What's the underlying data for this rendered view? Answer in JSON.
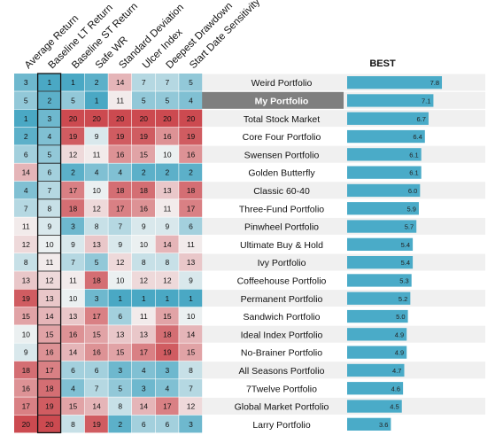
{
  "chart_data": [
    {
      "type": "heatmap",
      "columns": [
        "Average Return",
        "Baseline LT Return",
        "Baseline ST Return",
        "Safe WR",
        "Standard Deviation",
        "Ulcer Index",
        "Deepest Drawdown",
        "Start Date Sensitivity"
      ],
      "highlighted_column": "Baseline LT Return",
      "rows": [
        {
          "name": "Weird Portfolio",
          "ranks": [
            3,
            1,
            1,
            2,
            14,
            7,
            7,
            5
          ]
        },
        {
          "name": "My Portfolio",
          "ranks": [
            5,
            2,
            5,
            1,
            11,
            5,
            5,
            4
          ],
          "selected": true
        },
        {
          "name": "Total Stock Market",
          "ranks": [
            1,
            3,
            20,
            20,
            20,
            20,
            20,
            20
          ]
        },
        {
          "name": "Core Four Portfolio",
          "ranks": [
            2,
            4,
            19,
            9,
            19,
            19,
            16,
            19
          ]
        },
        {
          "name": "Swensen Portfolio",
          "ranks": [
            6,
            5,
            12,
            11,
            16,
            15,
            10,
            16
          ]
        },
        {
          "name": "Golden Butterfly",
          "ranks": [
            14,
            6,
            2,
            4,
            4,
            2,
            2,
            2
          ]
        },
        {
          "name": "Classic 60-40",
          "ranks": [
            4,
            7,
            17,
            10,
            18,
            18,
            13,
            18
          ]
        },
        {
          "name": "Three-Fund Portfolio",
          "ranks": [
            7,
            8,
            18,
            12,
            17,
            16,
            11,
            17
          ]
        },
        {
          "name": "Pinwheel Portfolio",
          "ranks": [
            11,
            9,
            3,
            8,
            7,
            9,
            9,
            6
          ]
        },
        {
          "name": "Ultimate Buy & Hold",
          "ranks": [
            12,
            10,
            9,
            13,
            9,
            10,
            14,
            11
          ]
        },
        {
          "name": "Ivy Portfolio",
          "ranks": [
            8,
            11,
            7,
            5,
            12,
            8,
            8,
            13
          ]
        },
        {
          "name": "Coffeehouse Portfolio",
          "ranks": [
            13,
            12,
            11,
            18,
            10,
            12,
            12,
            9
          ]
        },
        {
          "name": "Permanent Portfolio",
          "ranks": [
            19,
            13,
            10,
            3,
            1,
            1,
            1,
            1
          ]
        },
        {
          "name": "Sandwich Portfolio",
          "ranks": [
            15,
            14,
            13,
            17,
            6,
            11,
            15,
            10
          ]
        },
        {
          "name": "Ideal Index Portfolio",
          "ranks": [
            10,
            15,
            16,
            15,
            13,
            13,
            18,
            14
          ]
        },
        {
          "name": "No-Brainer Portfolio",
          "ranks": [
            9,
            16,
            14,
            16,
            15,
            17,
            19,
            15
          ]
        },
        {
          "name": "All Seasons Portfolio",
          "ranks": [
            18,
            17,
            6,
            6,
            3,
            4,
            3,
            8
          ]
        },
        {
          "name": "7Twelve Portfolio",
          "ranks": [
            16,
            18,
            4,
            7,
            5,
            3,
            4,
            7
          ]
        },
        {
          "name": "Global Market Portfolio",
          "ranks": [
            17,
            19,
            15,
            14,
            8,
            14,
            17,
            12
          ]
        },
        {
          "name": "Larry Portfolio",
          "ranks": [
            20,
            20,
            8,
            19,
            2,
            6,
            6,
            3
          ]
        }
      ],
      "color_scale": {
        "best_color": "#4aa8c4",
        "mid_color": "#f4f4f4",
        "worst_color": "#cc4a50",
        "min_rank": 1,
        "max_rank": 20
      }
    },
    {
      "type": "bar",
      "orientation": "horizontal",
      "title": "BEST",
      "categories": [
        "Weird Portfolio",
        "My Portfolio",
        "Total Stock Market",
        "Core Four Portfolio",
        "Swensen Portfolio",
        "Golden Butterfly",
        "Classic 60-40",
        "Three-Fund Portfolio",
        "Pinwheel Portfolio",
        "Ultimate Buy & Hold",
        "Ivy Portfolio",
        "Coffeehouse Portfolio",
        "Permanent Portfolio",
        "Sandwich Portfolio",
        "Ideal Index Portfolio",
        "No-Brainer Portfolio",
        "All Seasons Portfolio",
        "7Twelve Portfolio",
        "Global Market Portfolio",
        "Larry Portfolio"
      ],
      "values": [
        7.8,
        7.1,
        6.7,
        6.4,
        6.1,
        6.1,
        6.0,
        5.9,
        5.7,
        5.4,
        5.4,
        5.3,
        5.2,
        5.0,
        4.9,
        4.9,
        4.7,
        4.6,
        4.5,
        3.6
      ],
      "value_labels": [
        "7.8",
        "7.1",
        "6.7",
        "6.4",
        "6.1",
        "6.1",
        "6.0",
        "5.9",
        "5.7",
        "5.4",
        "5.4",
        "5.3",
        "5.2",
        "5.0",
        "4.9",
        "4.9",
        "4.7",
        "4.6",
        "4.5",
        "3.6"
      ],
      "xlim": [
        0,
        8.6
      ],
      "bar_color": "#4aabc8",
      "selected_row_color": "#7f7f7f",
      "stripe_color": "#f0f0f0"
    }
  ]
}
